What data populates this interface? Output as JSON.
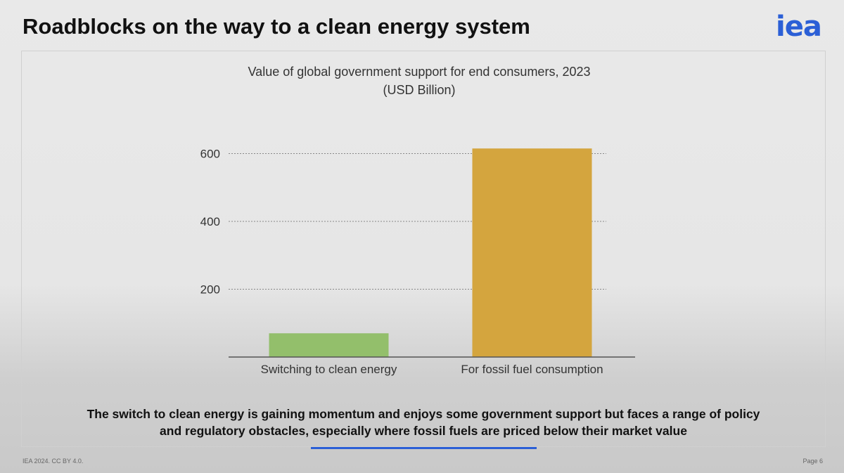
{
  "slide": {
    "title": "Roadblocks on the way to a clean energy system",
    "logo_text": "iea",
    "caption_line1": "The switch to clean energy is gaining momentum and enjoys some government support but faces a range of policy",
    "caption_line2": "and regulatory obstacles, especially where fossil fuels are priced below their market value",
    "footer_left": "IEA 2024. CC BY 4.0.",
    "footer_right": "Page 6",
    "accent_color": "#2b5fd6"
  },
  "chart_data": {
    "type": "bar",
    "title": "Value of global government support for end consumers, 2023",
    "subtitle": "(USD Billion)",
    "categories": [
      "Switching to clean energy",
      "For fossil fuel consumption"
    ],
    "values": [
      70,
      615
    ],
    "colors": [
      "#93bf6b",
      "#d4a53e"
    ],
    "yticks": [
      200,
      400,
      600
    ],
    "ylim": [
      0,
      615
    ],
    "grid": true,
    "grid_style": "dotted",
    "legend": "none"
  }
}
